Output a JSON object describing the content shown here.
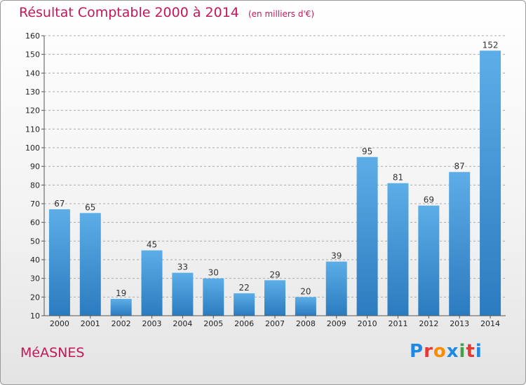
{
  "title": "Résultat Comptable 2000 à 2014",
  "subtitle": "(en milliers d'€)",
  "commune": "MéASNES",
  "logo": {
    "letters": [
      "P",
      "r",
      "o",
      "x",
      "i",
      "t",
      "i"
    ],
    "colors": [
      "#1e88e5",
      "#e53935",
      "#fb8c00",
      "#1e88e5",
      "#43a047",
      "#e53935",
      "#1e88e5"
    ]
  },
  "colors": {
    "title": "#c2185b",
    "bar_light": "#5dade8",
    "bar_dark": "#2b7bbf",
    "grid": "#aaaaaa"
  },
  "chart_data": {
    "type": "bar",
    "title": "Résultat Comptable 2000 à 2014",
    "subtitle": "(en milliers d'€)",
    "categories": [
      "2000",
      "2001",
      "2002",
      "2003",
      "2004",
      "2005",
      "2006",
      "2007",
      "2008",
      "2009",
      "2010",
      "2011",
      "2012",
      "2013",
      "2014"
    ],
    "values": [
      67,
      65,
      19,
      45,
      33,
      30,
      22,
      29,
      20,
      39,
      95,
      81,
      69,
      87,
      152
    ],
    "ylim": [
      10,
      160
    ],
    "yticks": [
      10,
      20,
      30,
      40,
      50,
      60,
      70,
      80,
      90,
      100,
      110,
      120,
      130,
      140,
      150,
      160
    ],
    "grid": true,
    "grid_style": "dashed horizontal",
    "data_labels": true
  }
}
